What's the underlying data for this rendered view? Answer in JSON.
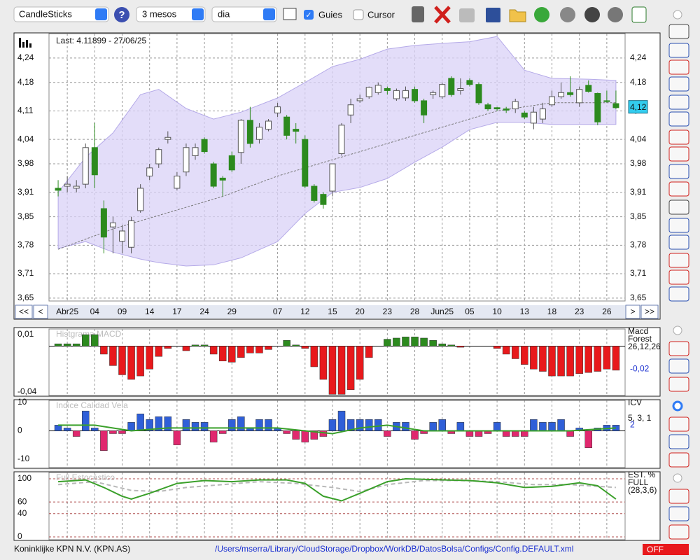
{
  "toolbar": {
    "chart_type": "CandleSticks",
    "period": "3 mesos",
    "interval": "dia",
    "guides": "Guies",
    "cursor": "Cursor"
  },
  "nav": {
    "first": "<<",
    "prev": "<",
    "next": ">",
    "last": ">>"
  },
  "status": {
    "company": "Koninklijke KPN N.V. (KPN.AS)",
    "path": "/Users/mserra/Library/CloudStorage/Dropbox/WorkDB/DatosBolsa/Configs/Config.DEFAULT.xml",
    "state": "OFF"
  },
  "chart_data": [
    {
      "type": "candlestick",
      "subtitle": "Last: 4.11899 - 27/06/25",
      "categories": [
        null,
        "Abr25",
        null,
        null,
        "04",
        null,
        null,
        "09",
        null,
        null,
        "14",
        null,
        null,
        "17",
        null,
        null,
        "24",
        null,
        null,
        "29",
        null,
        null,
        null,
        null,
        "07",
        null,
        null,
        "12",
        null,
        null,
        "15",
        null,
        null,
        "20",
        null,
        null,
        "23",
        null,
        null,
        "28",
        null,
        null,
        "Jun25",
        null,
        null,
        "05",
        null,
        null,
        "10",
        null,
        null,
        "13",
        null,
        null,
        "18",
        null,
        null,
        "23",
        null,
        null,
        "26",
        null
      ],
      "open": [
        3.92,
        3.925,
        3.92,
        3.93,
        4.02,
        3.87,
        3.825,
        3.79,
        3.775,
        3.865,
        3.95,
        3.98,
        4.04,
        3.92,
        3.96,
        4.0,
        4.04,
        3.98,
        3.945,
        4.0,
        4.008,
        4.087,
        4.04,
        4.065,
        4.105,
        4.095,
        4.065,
        4.04,
        3.925,
        3.905,
        3.913,
        4.005,
        4.1,
        4.135,
        4.145,
        4.155,
        4.165,
        4.14,
        4.142,
        4.163,
        4.135,
        4.15,
        4.145,
        4.19,
        4.16,
        4.185,
        4.175,
        4.125,
        4.118,
        4.115,
        4.115,
        4.105,
        4.08,
        4.09,
        4.125,
        4.145,
        4.155,
        4.13,
        4.173,
        4.153,
        4.135,
        4.128
      ],
      "high": [
        3.94,
        3.95,
        3.94,
        4.03,
        4.08,
        3.89,
        3.85,
        3.83,
        3.85,
        3.93,
        3.98,
        4.02,
        4.06,
        3.96,
        4.03,
        4.03,
        4.045,
        3.985,
        3.95,
        4.01,
        4.09,
        4.12,
        4.08,
        4.09,
        4.13,
        4.1,
        4.08,
        4.05,
        3.93,
        3.91,
        3.98,
        4.08,
        4.14,
        4.15,
        4.17,
        4.18,
        4.17,
        4.165,
        4.17,
        4.17,
        4.14,
        4.16,
        4.18,
        4.195,
        4.19,
        4.19,
        4.18,
        4.13,
        4.12,
        4.12,
        4.14,
        4.11,
        4.12,
        4.13,
        4.16,
        4.18,
        4.195,
        4.17,
        4.185,
        4.155,
        4.16,
        4.16
      ],
      "low": [
        3.9,
        3.91,
        3.91,
        3.92,
        3.92,
        3.76,
        3.76,
        3.76,
        3.76,
        3.86,
        3.94,
        3.97,
        4.03,
        3.915,
        3.95,
        3.99,
        4.005,
        3.92,
        3.9,
        3.96,
        3.98,
        4.02,
        4.03,
        4.06,
        4.095,
        4.04,
        4.03,
        3.92,
        3.885,
        3.87,
        3.9,
        4.0,
        4.08,
        4.13,
        4.14,
        4.15,
        4.15,
        4.135,
        4.135,
        4.13,
        4.08,
        4.14,
        4.14,
        4.145,
        4.15,
        4.17,
        4.125,
        4.11,
        4.11,
        4.105,
        4.105,
        4.09,
        4.065,
        4.08,
        4.12,
        4.14,
        4.145,
        4.12,
        4.155,
        4.075,
        4.13,
        4.115
      ],
      "close": [
        3.915,
        3.93,
        3.925,
        4.02,
        3.953,
        3.8,
        3.835,
        3.815,
        3.84,
        3.92,
        3.97,
        4.015,
        4.045,
        3.95,
        4.02,
        4.02,
        4.01,
        3.925,
        3.94,
        3.965,
        4.087,
        4.03,
        4.07,
        4.085,
        4.12,
        4.05,
        4.06,
        3.925,
        3.89,
        3.88,
        3.98,
        4.075,
        4.125,
        4.14,
        4.168,
        4.173,
        4.16,
        4.16,
        4.16,
        4.135,
        4.1,
        4.155,
        4.175,
        4.15,
        4.165,
        4.175,
        4.13,
        4.115,
        4.115,
        4.112,
        4.133,
        4.095,
        4.107,
        4.115,
        4.145,
        4.155,
        4.15,
        4.163,
        4.158,
        4.083,
        4.133,
        4.118
      ],
      "up_color": "#ffffff",
      "down_color": "#2c8a1e",
      "band": {
        "x": [
          0,
          3,
          6,
          9,
          11,
          14,
          17,
          20,
          24,
          27,
          30,
          33,
          36,
          39,
          42,
          45,
          48,
          51,
          54,
          58,
          61
        ],
        "upper": [
          3.91,
          3.996,
          4.056,
          4.15,
          4.163,
          4.116,
          4.09,
          4.107,
          4.142,
          4.18,
          4.219,
          4.237,
          4.262,
          4.271,
          4.276,
          4.28,
          4.293,
          4.21,
          4.19,
          4.188,
          4.185
        ],
        "lower": [
          3.772,
          3.789,
          3.763,
          3.746,
          3.737,
          3.729,
          3.732,
          3.749,
          3.789,
          3.858,
          3.91,
          3.922,
          3.944,
          3.984,
          4.021,
          4.064,
          4.082,
          4.082,
          4.077,
          4.077,
          4.077
        ],
        "color": "#d9d2f7"
      },
      "average": {
        "x": [
          0,
          6,
          12,
          18,
          24,
          30,
          36,
          42,
          48,
          54,
          61
        ],
        "values": [
          3.77,
          3.82,
          3.86,
          3.9,
          3.95,
          3.99,
          4.03,
          4.07,
          4.11,
          4.13,
          4.13
        ]
      },
      "current": {
        "value": 4.12,
        "label": "4,12"
      },
      "ylim": [
        3.643,
        4.3
      ],
      "yticks": [
        {
          "value": 3.65,
          "label": "3,65"
        },
        {
          "value": 3.71,
          "label": "3,71"
        },
        {
          "value": 3.78,
          "label": "3,78"
        },
        {
          "value": 3.85,
          "label": "3,85"
        },
        {
          "value": 3.91,
          "label": "3,91"
        },
        {
          "value": 3.98,
          "label": "3,98"
        },
        {
          "value": 4.04,
          "label": "4,04"
        },
        {
          "value": 4.11,
          "label": "4,11"
        },
        {
          "value": 4.18,
          "label": "4,18"
        },
        {
          "value": 4.24,
          "label": "4,24"
        }
      ],
      "xgrid": true,
      "ygrid": true
    },
    {
      "type": "bar",
      "title": "Histgrama MACD",
      "name": "Macd",
      "name2": "Forest",
      "params": "26,12,26",
      "current": {
        "value": -0.02,
        "label": "-0,02"
      },
      "values": [
        0.002,
        0.002,
        0.002,
        0.01,
        0.01,
        -0.007,
        -0.017,
        -0.025,
        -0.029,
        -0.026,
        -0.02,
        -0.009,
        -0.002,
        0,
        -0.004,
        0.001,
        0.001,
        -0.007,
        -0.013,
        -0.014,
        -0.01,
        -0.006,
        -0.006,
        -0.003,
        0,
        0.005,
        0.001,
        -0.002,
        -0.018,
        -0.029,
        -0.042,
        -0.042,
        -0.038,
        -0.029,
        -0.01,
        0,
        0.006,
        0.007,
        0.008,
        0.008,
        0.007,
        0.005,
        0.002,
        0.001,
        -0.001,
        0,
        0,
        0,
        -0.002,
        -0.007,
        -0.011,
        -0.016,
        -0.02,
        -0.022,
        -0.026,
        -0.026,
        -0.026,
        -0.024,
        -0.023,
        -0.022,
        -0.02,
        -0.021
      ],
      "pos_color": "#2c8a1e",
      "neg_color": "#e8191c",
      "ylim": [
        -0.043,
        0.0149
      ],
      "yticks": [
        {
          "value": 0.01,
          "label": "0,01"
        },
        {
          "value": -0.04,
          "label": "-0,04"
        }
      ],
      "xgrid": true,
      "ygrid": false
    },
    {
      "type": "bar",
      "title": "Indice Calidad Vela",
      "name": "ICV",
      "params": "5, 3, 1",
      "current": 2,
      "values": [
        2,
        1,
        -2,
        7,
        1,
        -7,
        -1,
        -1,
        3,
        6,
        4,
        5,
        5,
        -5,
        4,
        3,
        3,
        -4,
        -1,
        4,
        5,
        1,
        4,
        4,
        1,
        -1,
        -3,
        -4,
        -3,
        -2,
        4,
        7,
        4,
        4,
        4,
        4,
        -2,
        3,
        3,
        -3,
        -1,
        3,
        4,
        -1,
        3,
        -2,
        -2,
        -1,
        3,
        -2,
        -2,
        -2,
        4,
        3,
        3,
        4,
        -2,
        1,
        -6,
        1,
        2,
        2
      ],
      "pos_color": "#2f5fd8",
      "neg_color": "#e0286e",
      "line": {
        "x": [
          0,
          4,
          8,
          12,
          16,
          20,
          24,
          27,
          30,
          33,
          36,
          40,
          44,
          48,
          52,
          56,
          61
        ],
        "values": [
          2,
          2,
          0,
          1,
          1,
          1,
          1,
          0,
          -1,
          1,
          2,
          0,
          0,
          0,
          0,
          0,
          1
        ],
        "color": "#3aa02a"
      },
      "ylim": [
        -13,
        10.75
      ],
      "yticks": [
        10,
        0,
        -10
      ],
      "xgrid": true,
      "ygrid": false
    },
    {
      "type": "line",
      "title": "Full Estocástico",
      "name": "EST. %",
      "name2": "FULL",
      "params": "(28,3,6)",
      "series": [
        {
          "color": "#b8b8b8",
          "dashed": true,
          "x": [
            0,
            4,
            8,
            11,
            14,
            18,
            22,
            26,
            30,
            33,
            36,
            40,
            44,
            48,
            52,
            56,
            61
          ],
          "values": [
            90,
            95,
            80,
            78,
            85,
            90,
            95,
            92,
            85,
            78,
            90,
            97,
            97,
            95,
            90,
            90,
            85
          ]
        },
        {
          "color": "#3aa02a",
          "dashed": false,
          "x": [
            0,
            3,
            5,
            7,
            8,
            10,
            13,
            16,
            19,
            22,
            25,
            27,
            29,
            31,
            33,
            36,
            38,
            40,
            45,
            48,
            51,
            54,
            57,
            59,
            61
          ],
          "values": [
            95,
            98,
            85,
            70,
            65,
            75,
            92,
            97,
            95,
            98,
            98,
            92,
            70,
            62,
            75,
            95,
            100,
            99,
            97,
            93,
            85,
            87,
            93,
            88,
            65
          ]
        }
      ],
      "ylim": [
        -4.8,
        110.8
      ],
      "yticks": [
        100,
        60,
        40,
        0
      ],
      "xgrid": true,
      "ygrid": true,
      "grid_color": "#b05050"
    }
  ]
}
